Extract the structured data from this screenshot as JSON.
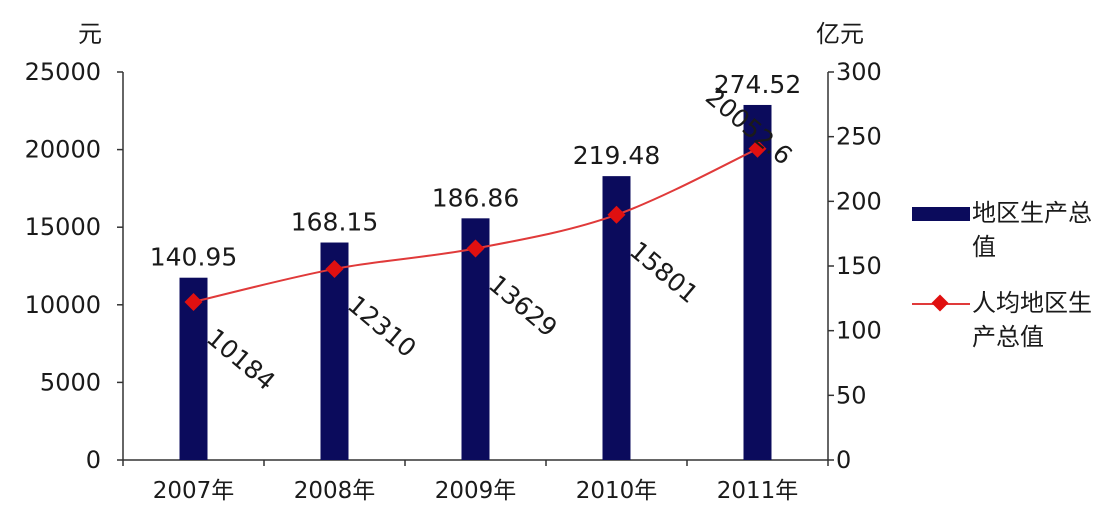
{
  "chart_data": {
    "type": "bar+line",
    "categories": [
      "2007年",
      "2008年",
      "2009年",
      "2010年",
      "2011年"
    ],
    "left_axis": {
      "unit": "元",
      "ylim": [
        0,
        25000
      ],
      "ticks": [
        "0",
        "5000",
        "10000",
        "15000",
        "20000",
        "25000"
      ]
    },
    "right_axis": {
      "unit": "亿元",
      "ylim": [
        0,
        300
      ],
      "ticks": [
        "0",
        "50",
        "100",
        "150",
        "200",
        "250",
        "300"
      ]
    },
    "series": [
      {
        "name": "地区生产总值",
        "type": "bar",
        "axis": "right",
        "values": [
          140.95,
          168.15,
          186.86,
          219.48,
          274.52
        ],
        "labels": [
          "140.95",
          "168.15",
          "186.86",
          "219.48",
          "274.52"
        ],
        "color": "#0b0b5c"
      },
      {
        "name": "人均地区生产总值",
        "type": "line",
        "axis": "left",
        "values": [
          10184,
          12310,
          13629,
          15801,
          20052.6
        ],
        "labels": [
          "10184",
          "12310",
          "13629",
          "15801",
          "20052.6"
        ],
        "color": "#e03a3a",
        "marker_color": "#e01010"
      }
    ],
    "legend": {
      "placement": "right",
      "items": [
        "地区生产总值",
        "人均地区生产总值"
      ]
    },
    "grid": false
  }
}
